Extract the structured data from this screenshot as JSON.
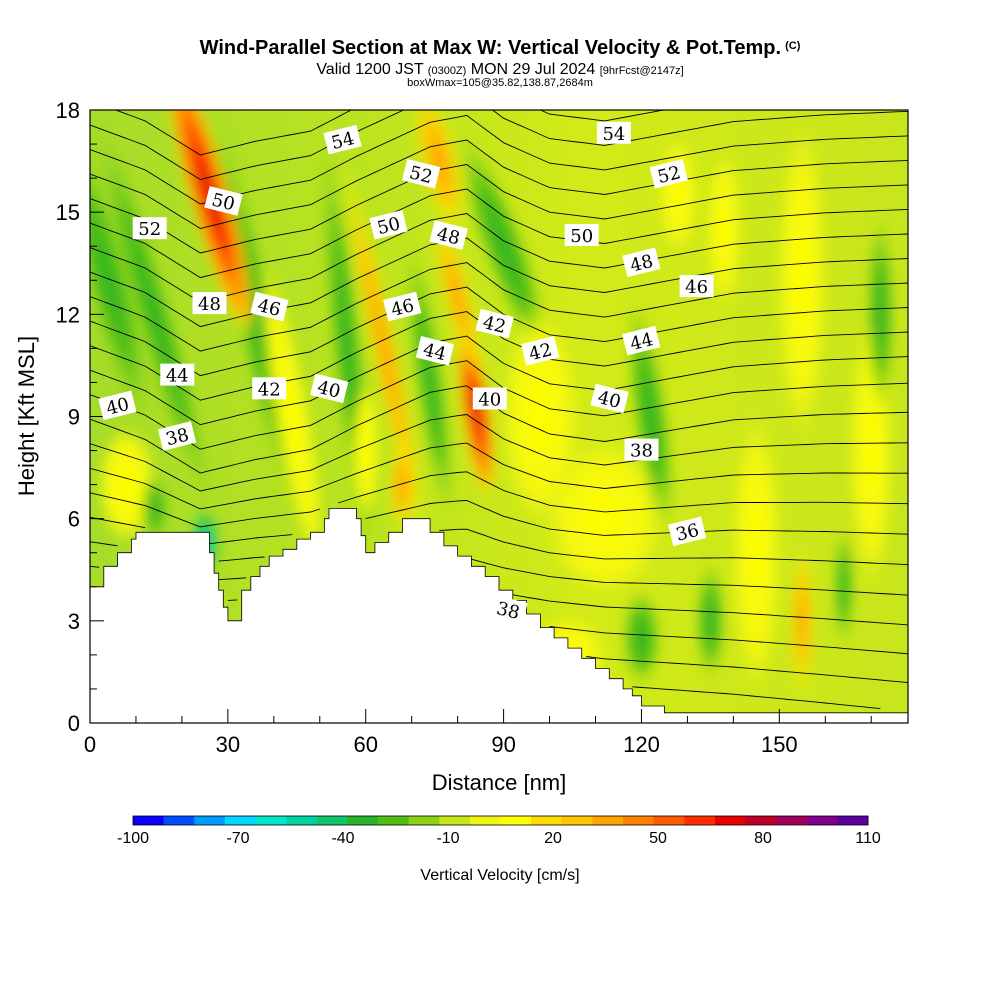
{
  "header": {
    "title": "Wind-Parallel Section at Max W: Vertical Velocity & Pot.Temp.",
    "copyright_tag": "(C)",
    "valid_prefix": "Valid 1200 JST",
    "valid_utc": "(0300Z)",
    "valid_date": "MON 29 Jul 2024",
    "forecast_tag": "[9hrFcst@2147z]",
    "box_info": "boxWmax=105@35.82,138.87,2684m"
  },
  "colorbar": {
    "title": "Vertical Velocity [cm/s]",
    "tick_labels": [
      "-100",
      "-70",
      "-40",
      "-10",
      "20",
      "50",
      "80",
      "110"
    ],
    "colors": [
      "#0a00ff",
      "#0050ff",
      "#009bff",
      "#00d7ff",
      "#00e6c8",
      "#00d2a0",
      "#14c36e",
      "#28b428",
      "#50be14",
      "#8cd214",
      "#c3e614",
      "#f0f514",
      "#ffff00",
      "#ffdc00",
      "#ffc300",
      "#ffa500",
      "#ff8200",
      "#ff5a00",
      "#ff2d00",
      "#e60000",
      "#be0028",
      "#a0005a",
      "#80008c",
      "#5a00a0"
    ]
  },
  "chart_data": {
    "type": "heatmap",
    "title": "Wind-Parallel Section at Max W: Vertical Velocity & Pot.Temp.",
    "xlabel": "Distance [nm]",
    "ylabel": "Height [Kft MSL]",
    "xlim": [
      0,
      178
    ],
    "ylim": [
      0,
      18
    ],
    "x_ticks": [
      0,
      30,
      60,
      90,
      120,
      150
    ],
    "y_ticks": [
      0,
      3,
      6,
      9,
      12,
      15,
      18
    ],
    "colorbar_range": [
      -100,
      110
    ],
    "field": "Vertical Velocity [cm/s]",
    "contour_field": "Pot.Temp.",
    "terrain_profile": {
      "distance_nm": [
        0,
        3,
        6,
        9,
        10,
        24,
        26,
        27,
        28,
        29,
        30,
        32,
        33,
        35,
        37,
        39,
        42,
        45,
        48,
        51,
        52,
        55,
        58,
        59,
        60,
        62,
        65,
        68,
        71,
        74,
        77,
        80,
        83,
        86,
        89,
        92,
        95,
        98,
        101,
        104,
        107,
        110,
        113,
        116,
        118,
        120,
        125,
        128,
        178
      ],
      "height_kft": [
        4.0,
        4.6,
        5.0,
        5.4,
        5.6,
        5.6,
        5.0,
        4.4,
        3.9,
        3.4,
        3.0,
        3.0,
        3.9,
        4.3,
        4.6,
        4.9,
        5.1,
        5.4,
        5.6,
        6.0,
        6.3,
        6.3,
        6.0,
        5.5,
        5.0,
        5.3,
        5.6,
        6.0,
        6.0,
        5.6,
        5.2,
        4.9,
        4.6,
        4.3,
        3.9,
        3.6,
        3.2,
        2.8,
        2.5,
        2.2,
        1.9,
        1.6,
        1.3,
        1.0,
        0.8,
        0.5,
        0.3,
        0.3,
        0.3
      ]
    },
    "updraft_cores": [
      {
        "distance_nm": 26,
        "height_kft": 15.5,
        "w_cm_s": 80
      },
      {
        "distance_nm": 84,
        "height_kft": 9.0,
        "w_cm_s": 90
      },
      {
        "distance_nm": 76,
        "height_kft": 16.5,
        "w_cm_s": 45
      },
      {
        "distance_nm": 155,
        "height_kft": 3.0,
        "w_cm_s": 40
      }
    ],
    "downdraft_cores": [
      {
        "distance_nm": 24,
        "height_kft": 5.5,
        "w_cm_s": -70
      },
      {
        "distance_nm": 56,
        "height_kft": 11,
        "w_cm_s": -30
      },
      {
        "distance_nm": 90,
        "height_kft": 14,
        "w_cm_s": -30
      }
    ],
    "theta_labels": [
      {
        "text": "54",
        "distance_nm": 55,
        "height_kft": 17.1
      },
      {
        "text": "54",
        "distance_nm": 114,
        "height_kft": 17.3
      },
      {
        "text": "52",
        "distance_nm": 72,
        "height_kft": 16.1
      },
      {
        "text": "52",
        "distance_nm": 126,
        "height_kft": 16.1
      },
      {
        "text": "52",
        "distance_nm": 13,
        "height_kft": 14.5
      },
      {
        "text": "50",
        "distance_nm": 29,
        "height_kft": 15.3
      },
      {
        "text": "50",
        "distance_nm": 65,
        "height_kft": 14.6
      },
      {
        "text": "50",
        "distance_nm": 107,
        "height_kft": 14.3
      },
      {
        "text": "48",
        "distance_nm": 78,
        "height_kft": 14.3
      },
      {
        "text": "48",
        "distance_nm": 120,
        "height_kft": 13.5
      },
      {
        "text": "48",
        "distance_nm": 26,
        "height_kft": 12.3
      },
      {
        "text": "46",
        "distance_nm": 39,
        "height_kft": 12.2
      },
      {
        "text": "46",
        "distance_nm": 68,
        "height_kft": 12.2
      },
      {
        "text": "46",
        "distance_nm": 132,
        "height_kft": 12.8
      },
      {
        "text": "44",
        "distance_nm": 75,
        "height_kft": 10.9
      },
      {
        "text": "44",
        "distance_nm": 120,
        "height_kft": 11.2
      },
      {
        "text": "44",
        "distance_nm": 19,
        "height_kft": 10.2
      },
      {
        "text": "42",
        "distance_nm": 88,
        "height_kft": 11.7
      },
      {
        "text": "42",
        "distance_nm": 98,
        "height_kft": 10.9
      },
      {
        "text": "42",
        "distance_nm": 39,
        "height_kft": 9.8
      },
      {
        "text": "40",
        "distance_nm": 52,
        "height_kft": 9.8
      },
      {
        "text": "40",
        "distance_nm": 6,
        "height_kft": 9.3
      },
      {
        "text": "40",
        "distance_nm": 87,
        "height_kft": 9.5
      },
      {
        "text": "40",
        "distance_nm": 113,
        "height_kft": 9.5
      },
      {
        "text": "38",
        "distance_nm": 19,
        "height_kft": 8.4
      },
      {
        "text": "38",
        "distance_nm": 120,
        "height_kft": 8.0
      },
      {
        "text": "38",
        "distance_nm": 91,
        "height_kft": 3.3
      },
      {
        "text": "36",
        "distance_nm": 130,
        "height_kft": 5.6
      }
    ]
  }
}
